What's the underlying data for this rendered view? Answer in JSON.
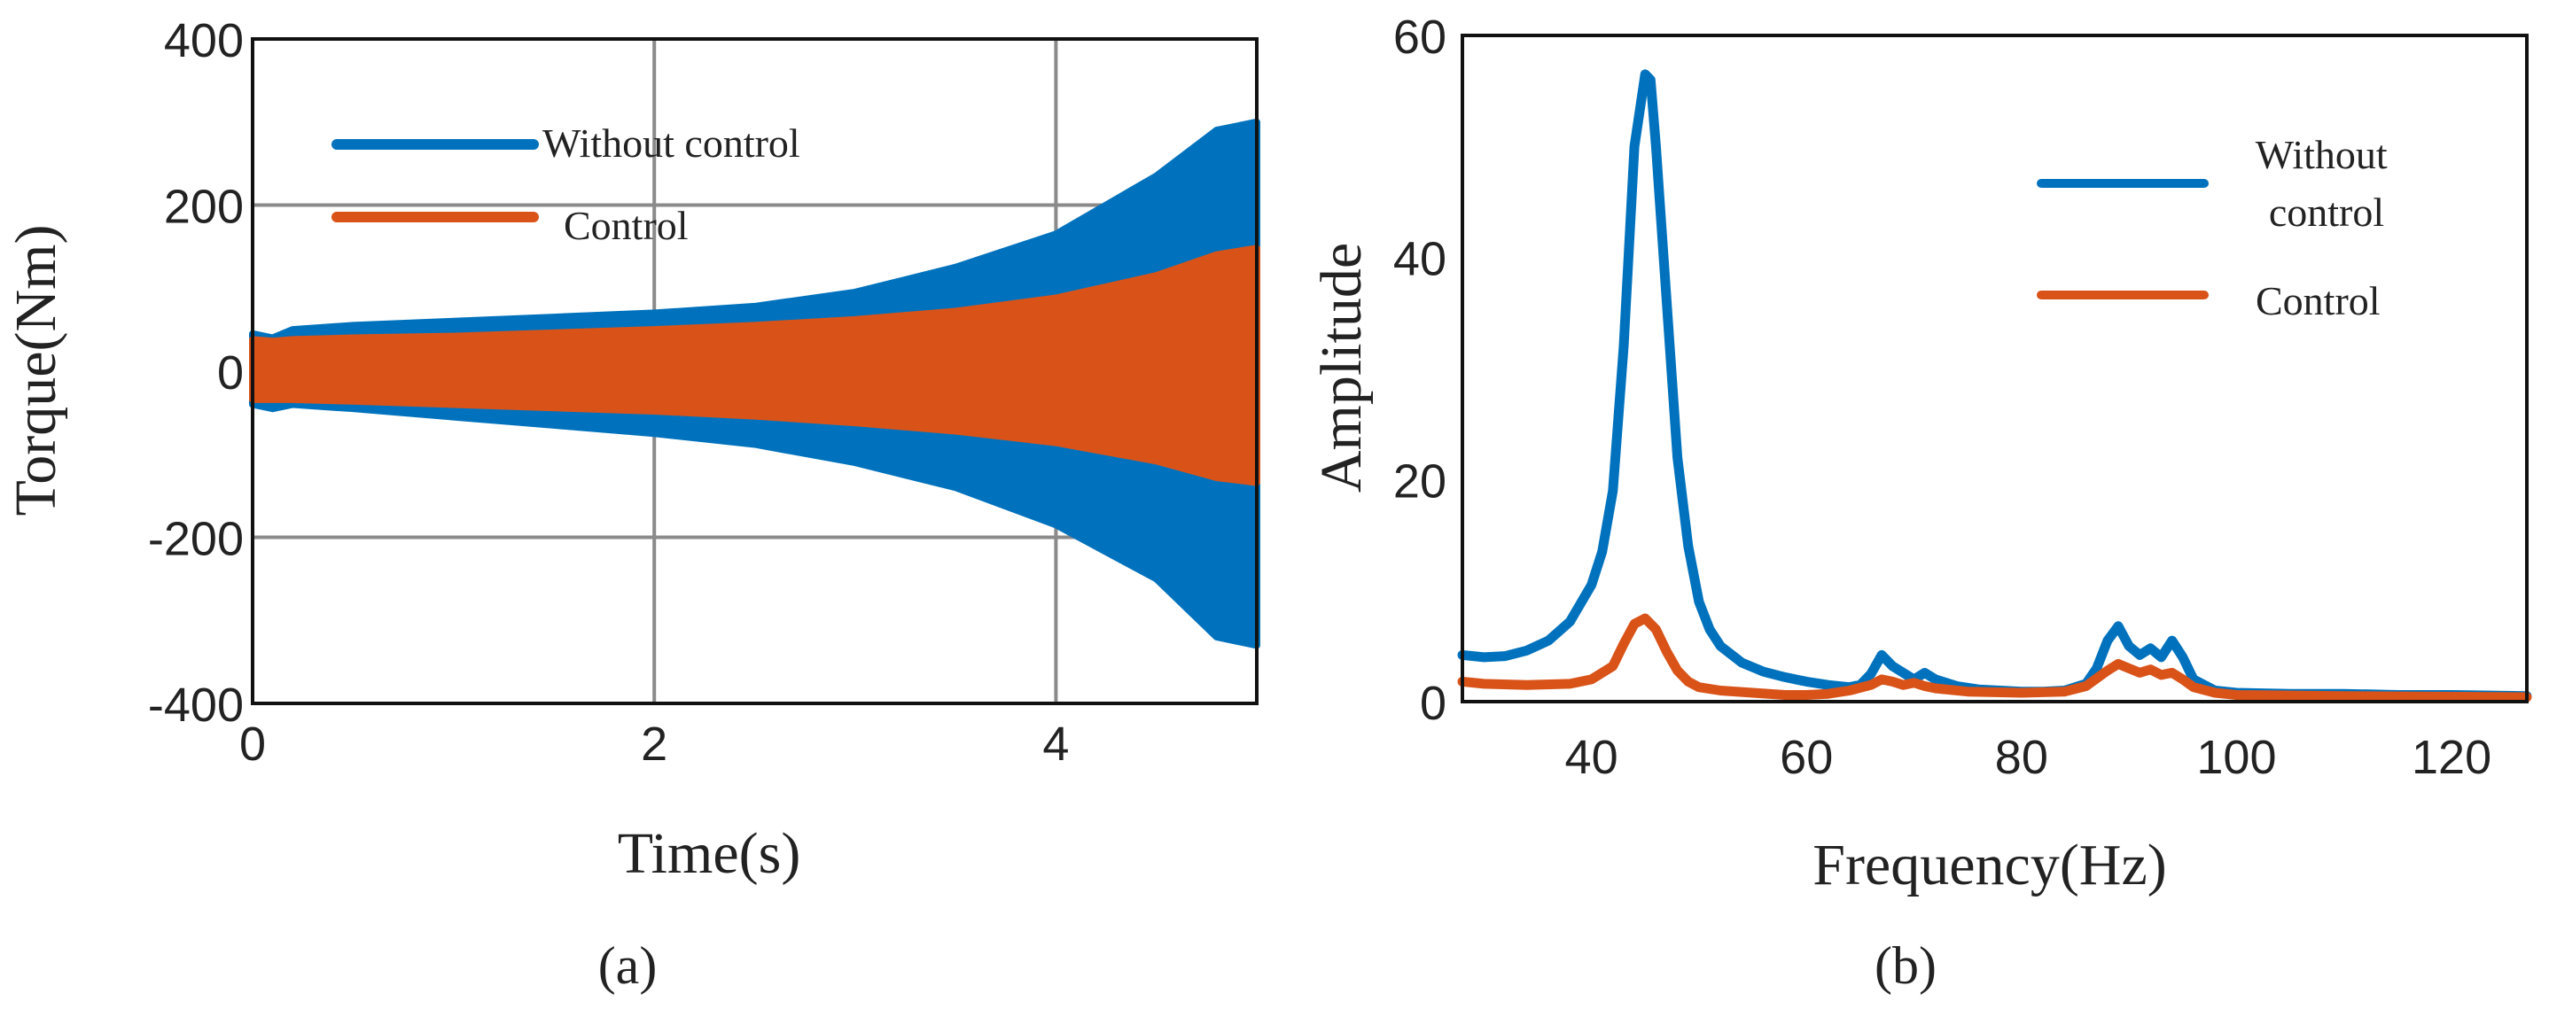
{
  "chart_data": [
    {
      "panel": "(a)",
      "type": "line",
      "plot_style": "filled oscillation envelope",
      "xlabel": "Time(s)",
      "ylabel": "Torque(Nm)",
      "xlim": [
        0,
        5
      ],
      "ylim": [
        -400,
        400
      ],
      "xticks": [
        0,
        2,
        4
      ],
      "yticks": [
        400,
        200,
        0,
        -200,
        -400
      ],
      "grid": true,
      "legend_position": "top-left",
      "series": [
        {
          "name": "Without control",
          "color": "#0072BD",
          "t": [
            0,
            0.1,
            0.2,
            0.5,
            1.0,
            1.5,
            2.0,
            2.5,
            3.0,
            3.5,
            4.0,
            4.5,
            4.8,
            5.0
          ],
          "upper": [
            45,
            40,
            50,
            55,
            60,
            65,
            70,
            78,
            95,
            125,
            165,
            235,
            290,
            300
          ],
          "lower": [
            -40,
            -45,
            -40,
            -45,
            -55,
            -65,
            -75,
            -88,
            -110,
            -140,
            -185,
            -250,
            -320,
            -330
          ]
        },
        {
          "name": "Control",
          "color": "#D95319",
          "t": [
            0,
            0.1,
            0.2,
            0.5,
            1.0,
            1.5,
            2.0,
            2.5,
            3.0,
            3.5,
            4.0,
            4.5,
            4.8,
            5.0
          ],
          "upper": [
            38,
            36,
            38,
            40,
            42,
            46,
            50,
            55,
            62,
            72,
            88,
            115,
            140,
            148
          ],
          "lower": [
            -34,
            -34,
            -34,
            -36,
            -40,
            -44,
            -48,
            -54,
            -62,
            -72,
            -86,
            -108,
            -128,
            -134
          ]
        }
      ]
    },
    {
      "panel": "(b)",
      "type": "line",
      "xlabel": "Frequency(Hz)",
      "ylabel": "Amplitude",
      "xlim": [
        28,
        127
      ],
      "ylim": [
        0,
        60
      ],
      "xticks": [
        40,
        60,
        80,
        100,
        120
      ],
      "yticks": [
        60,
        40,
        20,
        0
      ],
      "grid": false,
      "legend_position": "top-right",
      "series": [
        {
          "name": "Without control",
          "color": "#0072BD",
          "x": [
            28,
            30,
            32,
            34,
            36,
            38,
            40,
            41,
            42,
            43,
            44,
            45,
            45.5,
            46,
            47,
            48,
            49,
            50,
            51,
            52,
            54,
            56,
            58,
            60,
            62,
            64,
            65,
            66,
            67,
            68,
            69,
            70,
            71,
            72,
            74,
            76,
            78,
            80,
            82,
            84,
            86,
            87,
            88,
            89,
            90,
            91,
            92,
            93,
            94,
            95,
            96,
            98,
            100,
            105,
            110,
            115,
            120,
            127
          ],
          "y": [
            4.2,
            4.0,
            4.1,
            4.6,
            5.5,
            7.2,
            10.5,
            13.5,
            19.0,
            32.0,
            50.0,
            56.5,
            56.0,
            50.0,
            36.0,
            22.0,
            14.0,
            9.0,
            6.5,
            5.0,
            3.5,
            2.7,
            2.2,
            1.8,
            1.5,
            1.3,
            1.5,
            2.5,
            4.2,
            3.2,
            2.6,
            2.0,
            2.6,
            2.0,
            1.4,
            1.1,
            1.0,
            0.9,
            0.9,
            1.0,
            1.6,
            3.0,
            5.5,
            6.8,
            5.0,
            4.2,
            4.8,
            4.0,
            5.5,
            4.0,
            2.0,
            1.0,
            0.8,
            0.7,
            0.7,
            0.6,
            0.6,
            0.5
          ]
        },
        {
          "name": "Control",
          "color": "#D95319",
          "x": [
            28,
            30,
            34,
            38,
            40,
            42,
            43,
            44,
            45,
            46,
            47,
            48,
            49,
            50,
            52,
            55,
            58,
            60,
            62,
            64,
            66,
            67,
            68,
            69,
            70,
            71,
            72,
            75,
            80,
            84,
            86,
            88,
            89,
            90,
            91,
            92,
            93,
            94,
            95,
            96,
            98,
            100,
            110,
            127
          ],
          "y": [
            1.8,
            1.6,
            1.5,
            1.6,
            2.0,
            3.2,
            5.2,
            7.0,
            7.5,
            6.5,
            4.5,
            2.8,
            1.8,
            1.3,
            1.0,
            0.8,
            0.6,
            0.6,
            0.7,
            1.0,
            1.5,
            2.0,
            1.8,
            1.5,
            1.7,
            1.4,
            1.2,
            0.9,
            0.8,
            0.9,
            1.4,
            2.8,
            3.4,
            3.0,
            2.6,
            2.9,
            2.4,
            2.6,
            2.0,
            1.3,
            0.8,
            0.6,
            0.5,
            0.4
          ]
        }
      ]
    }
  ]
}
